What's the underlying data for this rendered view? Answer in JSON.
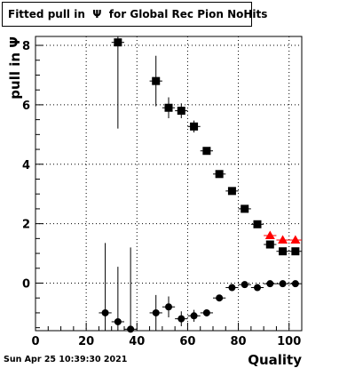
{
  "title": "Fitted pull in  Ψ  for Global Rec Pion NoHits",
  "timestamp": "Sun Apr 25 10:39:30 2021",
  "chart_data": {
    "type": "scatter",
    "title": "Fitted pull in  Ψ  for Global Rec Pion NoHits",
    "xlabel": "Quality",
    "ylabel": "pull in  Ψ",
    "xlim": [
      0,
      105
    ],
    "ylim": [
      -1.6,
      8.3
    ],
    "x_ticks": [
      0,
      20,
      40,
      60,
      80,
      100
    ],
    "y_ticks": [
      0,
      2,
      4,
      6,
      8
    ],
    "grid": true,
    "series": [
      {
        "marker": "square",
        "color": "#000000",
        "points": [
          {
            "x": 32.5,
            "y": 8.1,
            "yerr": 2.9
          },
          {
            "x": 47.5,
            "y": 6.8,
            "yerr": 0.85
          },
          {
            "x": 52.5,
            "y": 5.9,
            "yerr": 0.35
          },
          {
            "x": 57.5,
            "y": 5.8,
            "yerr": 0.25
          },
          {
            "x": 62.5,
            "y": 5.27,
            "yerr": 0.2
          },
          {
            "x": 67.5,
            "y": 4.45,
            "yerr": 0.12
          },
          {
            "x": 72.5,
            "y": 3.67,
            "yerr": 0.08
          },
          {
            "x": 77.5,
            "y": 3.1,
            "yerr": 0.06
          },
          {
            "x": 82.5,
            "y": 2.5,
            "yerr": 0.05
          },
          {
            "x": 87.5,
            "y": 1.98,
            "yerr": 0.05
          },
          {
            "x": 92.5,
            "y": 1.3,
            "yerr": 0.05
          },
          {
            "x": 97.5,
            "y": 1.07,
            "yerr": 0.05
          },
          {
            "x": 102.5,
            "y": 1.07,
            "yerr": 0.05
          }
        ]
      },
      {
        "marker": "circle",
        "color": "#000000",
        "points": [
          {
            "x": 27.5,
            "y": -1.0,
            "yerr": 2.35
          },
          {
            "x": 32.5,
            "y": -1.3,
            "yerr": 1.85
          },
          {
            "x": 37.5,
            "y": -1.55,
            "yerr": 2.75
          },
          {
            "x": 47.5,
            "y": -1.0,
            "yerr": 0.6
          },
          {
            "x": 52.5,
            "y": -0.8,
            "yerr": 0.35
          },
          {
            "x": 57.5,
            "y": -1.2,
            "yerr": 0.25
          },
          {
            "x": 62.5,
            "y": -1.1,
            "yerr": 0.2
          },
          {
            "x": 67.5,
            "y": -1.0,
            "yerr": 0.12
          },
          {
            "x": 72.5,
            "y": -0.5,
            "yerr": 0.08
          },
          {
            "x": 77.5,
            "y": -0.15,
            "yerr": 0.06
          },
          {
            "x": 82.5,
            "y": -0.05,
            "yerr": 0.05
          },
          {
            "x": 87.5,
            "y": -0.15,
            "yerr": 0.05
          },
          {
            "x": 92.5,
            "y": -0.02,
            "yerr": 0.05
          },
          {
            "x": 97.5,
            "y": -0.02,
            "yerr": 0.05
          },
          {
            "x": 102.5,
            "y": -0.02,
            "yerr": 0.05
          }
        ]
      },
      {
        "marker": "triangle",
        "color": "#ff0000",
        "points": [
          {
            "x": 92.5,
            "y": 1.6,
            "yerr": 0.08
          },
          {
            "x": 97.5,
            "y": 1.45,
            "yerr": 0.07
          },
          {
            "x": 102.5,
            "y": 1.45,
            "yerr": 0.07
          }
        ]
      }
    ]
  }
}
